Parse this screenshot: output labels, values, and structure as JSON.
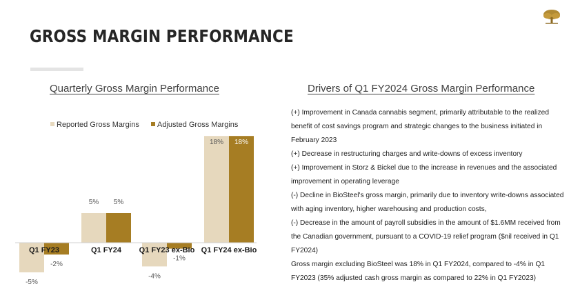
{
  "page": {
    "title": "GROSS MARGIN PERFORMANCE"
  },
  "left_section": {
    "title": "Quarterly Gross Margin Performance"
  },
  "right_section": {
    "title": "Drivers of Q1 FY2024 Gross Margin Performance",
    "paragraphs": [
      "(+) Improvement in Canada cannabis segment, primarily attributable to the realized benefit of cost savings program and strategic changes to the business initiated in February 2023",
      "(+) Decrease in restructuring charges and write-downs of excess inventory",
      "(+) Improvement in Storz & Bickel due to the increase in revenues and the associated improvement in operating leverage",
      "(-) Decline in BioSteel's gross margin, primarily due to inventory write-downs associated with aging inventory, higher warehousing and production costs,",
      "(-) Decrease in the amount of payroll subsidies in the amount of $1.6MM received from the Canadian government, pursuant to a COVID-19 relief program ($nil received in Q1 FY2024)",
      "Gross margin excluding BioSteel was 18% in Q1 FY2024, compared to -4% in Q1 FY2023 (35% adjusted cash gross margin as compared to 22% in Q1 FY2023)"
    ]
  },
  "colors": {
    "reported": "#e6d8bd",
    "adjusted": "#a67d23",
    "title_bar": "#e4e4e4"
  },
  "logo": {
    "icon": "tree-logo-icon"
  },
  "chart_data": {
    "type": "bar",
    "categories": [
      "Q1 FY23",
      "Q1 FY24",
      "Q1 FY23 ex-Bio",
      "Q1 FY24 ex-Bio"
    ],
    "series": [
      {
        "name": "Reported Gross Margins",
        "values": [
          -5,
          5,
          -4,
          18
        ],
        "labels": [
          "-5%",
          "5%",
          "-4%",
          "18%"
        ]
      },
      {
        "name": "Adjusted Gross Margins",
        "values": [
          -2,
          5,
          -1,
          18
        ],
        "labels": [
          "-2%",
          "5%",
          "-1%",
          "18%"
        ]
      }
    ],
    "ylim": [
      -5,
      18
    ],
    "legend": "top",
    "grid": false
  }
}
